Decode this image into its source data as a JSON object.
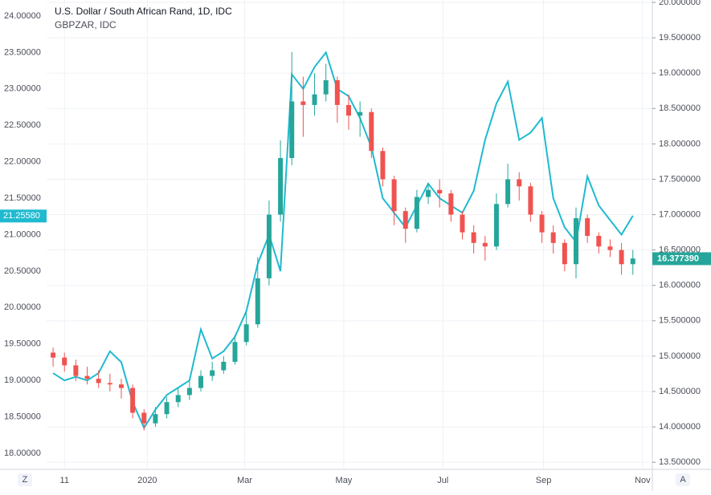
{
  "chart_data": {
    "type": "candlestick",
    "title": "U.S. Dollar / South African Rand, 1D, IDC",
    "x": [
      "2019-11-04",
      "2019-11-11",
      "2019-11-18",
      "2019-11-25",
      "2019-12-02",
      "2019-12-09",
      "2019-12-16",
      "2019-12-23",
      "2019-12-30",
      "2020-01-06",
      "2020-01-13",
      "2020-01-20",
      "2020-01-27",
      "2020-02-03",
      "2020-02-10",
      "2020-02-17",
      "2020-02-24",
      "2020-03-02",
      "2020-03-09",
      "2020-03-16",
      "2020-03-23",
      "2020-03-30",
      "2020-04-06",
      "2020-04-13",
      "2020-04-20",
      "2020-04-27",
      "2020-05-04",
      "2020-05-11",
      "2020-05-18",
      "2020-05-25",
      "2020-06-01",
      "2020-06-08",
      "2020-06-15",
      "2020-06-22",
      "2020-06-29",
      "2020-07-06",
      "2020-07-13",
      "2020-07-20",
      "2020-07-27",
      "2020-08-03",
      "2020-08-10",
      "2020-08-17",
      "2020-08-24",
      "2020-08-31",
      "2020-09-07",
      "2020-09-14",
      "2020-09-21",
      "2020-09-28",
      "2020-10-05",
      "2020-10-12",
      "2020-10-19",
      "2020-10-26"
    ],
    "open": [
      15.05,
      14.98,
      14.87,
      14.72,
      14.68,
      14.62,
      14.6,
      14.55,
      14.2,
      14.05,
      14.18,
      14.35,
      14.45,
      14.55,
      14.72,
      14.8,
      14.92,
      15.2,
      15.45,
      16.1,
      17.0,
      17.8,
      18.6,
      18.55,
      18.7,
      18.9,
      18.55,
      18.4,
      18.45,
      17.9,
      17.5,
      17.05,
      16.8,
      17.25,
      17.35,
      17.3,
      17.0,
      16.75,
      16.6,
      16.55,
      17.15,
      17.5,
      17.4,
      17.0,
      16.75,
      16.6,
      16.3,
      16.95,
      16.7,
      16.55,
      16.5,
      16.3
    ],
    "high": [
      15.12,
      15.05,
      14.95,
      14.85,
      14.8,
      14.75,
      14.68,
      14.6,
      14.25,
      14.28,
      14.42,
      14.55,
      14.65,
      14.8,
      14.92,
      15.0,
      15.3,
      15.62,
      16.4,
      17.2,
      18.05,
      19.3,
      18.95,
      19.0,
      19.13,
      18.95,
      18.7,
      18.6,
      18.5,
      17.95,
      17.55,
      17.1,
      17.35,
      17.45,
      17.5,
      17.35,
      17.05,
      16.85,
      16.7,
      17.3,
      17.72,
      17.6,
      17.45,
      17.05,
      16.85,
      16.65,
      17.1,
      17.0,
      16.75,
      16.65,
      16.6,
      16.5
    ],
    "low": [
      14.85,
      14.78,
      14.65,
      14.6,
      14.55,
      14.5,
      14.4,
      14.12,
      13.95,
      14.0,
      14.12,
      14.28,
      14.38,
      14.5,
      14.65,
      14.75,
      14.88,
      15.15,
      15.4,
      16.0,
      16.9,
      17.7,
      18.1,
      18.4,
      18.6,
      18.3,
      18.2,
      18.1,
      17.8,
      17.4,
      16.85,
      16.6,
      16.75,
      17.15,
      17.1,
      16.9,
      16.65,
      16.45,
      16.35,
      16.5,
      17.1,
      17.2,
      16.9,
      16.6,
      16.45,
      16.2,
      16.1,
      16.6,
      16.45,
      16.4,
      16.15,
      16.15
    ],
    "close": [
      14.98,
      14.87,
      14.72,
      14.68,
      14.62,
      14.6,
      14.55,
      14.2,
      14.05,
      14.18,
      14.35,
      14.45,
      14.55,
      14.72,
      14.8,
      14.92,
      15.2,
      15.45,
      16.1,
      17.0,
      17.8,
      18.6,
      18.55,
      18.7,
      18.9,
      18.55,
      18.4,
      18.45,
      17.9,
      17.5,
      17.05,
      16.8,
      17.25,
      17.35,
      17.3,
      17.0,
      16.75,
      16.6,
      16.55,
      17.15,
      17.5,
      17.4,
      17.0,
      16.75,
      16.6,
      16.3,
      16.95,
      16.7,
      16.55,
      16.5,
      16.3,
      16.38
    ],
    "up_color": "#26a69a",
    "down_color": "#ef5350",
    "axis": "y2",
    "last_value": {
      "value": 16.37739,
      "label": "16.377390"
    },
    "compare": {
      "name": "GBPZAR, IDC",
      "color": "#1fbad0",
      "axis": "y",
      "values": [
        19.1,
        19.0,
        19.05,
        19.0,
        19.1,
        19.4,
        19.25,
        18.7,
        18.35,
        18.6,
        18.8,
        18.9,
        19.0,
        19.7,
        19.3,
        19.4,
        19.6,
        19.95,
        20.6,
        21.0,
        20.5,
        23.2,
        23.0,
        23.3,
        23.5,
        23.0,
        22.9,
        22.6,
        22.2,
        21.5,
        21.3,
        21.1,
        21.4,
        21.7,
        21.5,
        21.4,
        21.3,
        21.6,
        22.3,
        22.8,
        23.1,
        22.3,
        22.4,
        22.6,
        21.5,
        21.1,
        20.9,
        21.8,
        21.4,
        21.2,
        21.0,
        21.26
      ],
      "last_value": {
        "value": 21.2558,
        "label": "21.25580"
      }
    },
    "xlim": [
      "2019-10-31",
      "2020-11-07"
    ],
    "xticks": [
      {
        "value": "2019-11-11",
        "label": "11"
      },
      {
        "value": "2020-01-01",
        "label": "2020"
      },
      {
        "value": "2020-03-01",
        "label": "Mar"
      },
      {
        "value": "2020-05-01",
        "label": "May"
      },
      {
        "value": "2020-07-01",
        "label": "Jul"
      },
      {
        "value": "2020-09-01",
        "label": "Sep"
      },
      {
        "value": "2020-11-01",
        "label": "Nov"
      }
    ],
    "ylim": [
      17.78,
      24.22
    ],
    "yticks": [
      {
        "value": 18,
        "label": "18.00000"
      },
      {
        "value": 18.5,
        "label": "18.50000"
      },
      {
        "value": 19,
        "label": "19.00000"
      },
      {
        "value": 19.5,
        "label": "19.50000"
      },
      {
        "value": 20,
        "label": "20.00000"
      },
      {
        "value": 20.5,
        "label": "20.50000"
      },
      {
        "value": 21,
        "label": "21.00000"
      },
      {
        "value": 21.5,
        "label": "21.50000"
      },
      {
        "value": 22,
        "label": "22.00000"
      },
      {
        "value": 22.5,
        "label": "22.50000"
      },
      {
        "value": 23,
        "label": "23.00000"
      },
      {
        "value": 23.5,
        "label": "23.50000"
      },
      {
        "value": 24,
        "label": "24.00000"
      }
    ],
    "y2lim": [
      13.4,
      20.034
    ],
    "y2ticks": [
      {
        "value": 13.5,
        "label": "13.500000"
      },
      {
        "value": 14,
        "label": "14.000000"
      },
      {
        "value": 14.5,
        "label": "14.500000"
      },
      {
        "value": 15,
        "label": "15.000000"
      },
      {
        "value": 15.5,
        "label": "15.500000"
      },
      {
        "value": 16,
        "label": "16.000000"
      },
      {
        "value": 16.5,
        "label": "16.500000"
      },
      {
        "value": 17,
        "label": "17.000000"
      },
      {
        "value": 17.5,
        "label": "17.500000"
      },
      {
        "value": 18,
        "label": "18.000000"
      },
      {
        "value": 18.5,
        "label": "18.500000"
      },
      {
        "value": 19,
        "label": "19.000000"
      },
      {
        "value": 19.5,
        "label": "19.500000"
      },
      {
        "value": 20,
        "label": "20.000000"
      }
    ],
    "grid": true
  },
  "axis_buttons": {
    "left": "Z",
    "right": "A"
  }
}
